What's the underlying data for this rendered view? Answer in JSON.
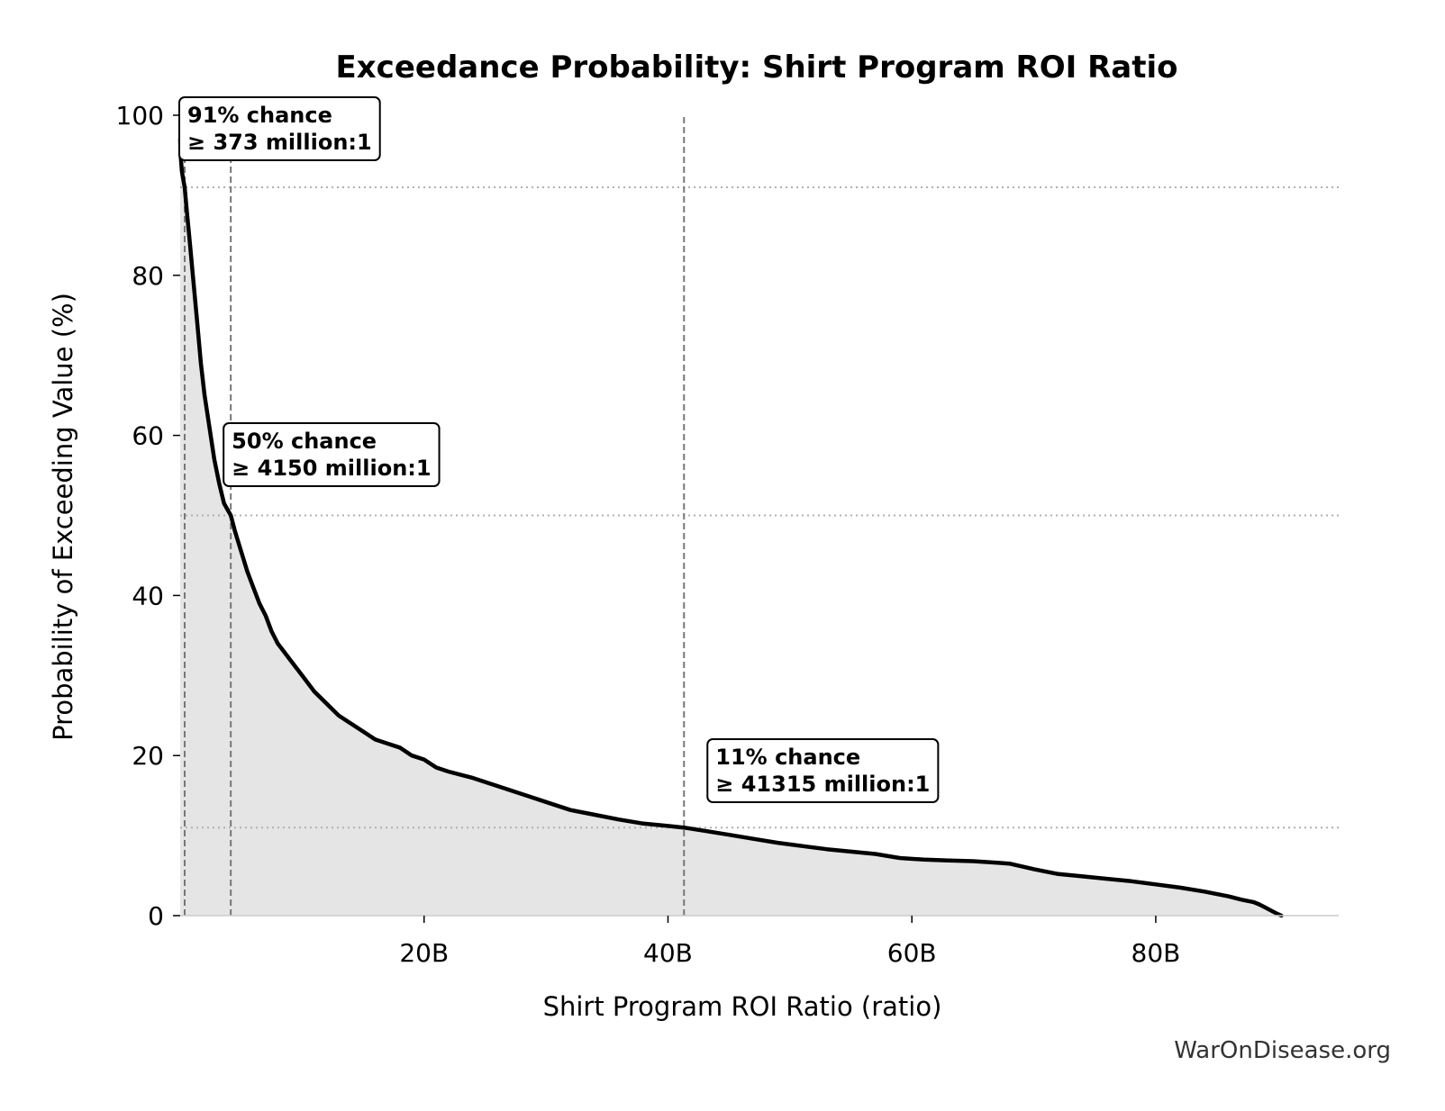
{
  "chart_data": {
    "type": "line",
    "title": "Exceedance Probability: Shirt Program ROI Ratio",
    "xlabel": "Shirt Program ROI Ratio (ratio)",
    "ylabel": "Probability of Exceeding Value (%)",
    "xlim": [
      0,
      95
    ],
    "ylim": [
      0,
      100
    ],
    "x_unit": "billion",
    "x_ticks": [
      {
        "value": 20,
        "label": "20B"
      },
      {
        "value": 40,
        "label": "40B"
      },
      {
        "value": 60,
        "label": "60B"
      },
      {
        "value": 80,
        "label": "80B"
      }
    ],
    "y_ticks": [
      {
        "value": 0,
        "label": "0"
      },
      {
        "value": 20,
        "label": "20"
      },
      {
        "value": 40,
        "label": "40"
      },
      {
        "value": 60,
        "label": "60"
      },
      {
        "value": 80,
        "label": "80"
      },
      {
        "value": 100,
        "label": "100"
      }
    ],
    "grid": false,
    "fill_under_curve": true,
    "colors": {
      "line": "#000000",
      "fill": "#e5e5e5",
      "marker_line": "#777777",
      "ref_line": "#b0b0b0",
      "axis": "#cccccc"
    },
    "series": [
      {
        "x": [
          0.0,
          0.04,
          0.14,
          0.25,
          0.37,
          0.55,
          0.8,
          1.1,
          1.4,
          1.7,
          2.0,
          2.4,
          2.8,
          3.2,
          3.6,
          4.15,
          4.5,
          5.0,
          5.5,
          6.0,
          6.5,
          7.0,
          7.5,
          8.0,
          8.5,
          9.0,
          9.5,
          10.0,
          11.0,
          12.0,
          13.0,
          14.0,
          15.0,
          16.0,
          17.0,
          18.0,
          19.0,
          20.0,
          21.0,
          22.0,
          24.0,
          26.0,
          28.0,
          30.0,
          32.0,
          34.0,
          36.0,
          38.0,
          40.0,
          41.3,
          43.0,
          45.0,
          47.0,
          49.0,
          51.0,
          53.0,
          55.0,
          57.0,
          59.0,
          61.0,
          63.0,
          65.0,
          67.0,
          68.0,
          70.0,
          72.0,
          74.0,
          76.0,
          78.0,
          80.0,
          82.0,
          84.0,
          86.0,
          87.0,
          88.0,
          88.5,
          89.0,
          89.5,
          90.0,
          90.3
        ],
        "y": [
          97.0,
          95.0,
          93.0,
          92.0,
          91.0,
          88.0,
          84.0,
          79.0,
          74.0,
          69.0,
          65.0,
          61.0,
          57.0,
          54.0,
          51.5,
          50.0,
          48.0,
          45.5,
          43.0,
          41.0,
          39.0,
          37.5,
          35.5,
          34.0,
          33.0,
          32.0,
          31.0,
          30.0,
          28.0,
          26.5,
          25.0,
          24.0,
          23.0,
          22.0,
          21.5,
          21.0,
          20.0,
          19.5,
          18.5,
          18.0,
          17.2,
          16.2,
          15.2,
          14.2,
          13.2,
          12.6,
          12.0,
          11.5,
          11.2,
          11.0,
          10.6,
          10.1,
          9.6,
          9.1,
          8.7,
          8.3,
          8.0,
          7.7,
          7.2,
          7.0,
          6.9,
          6.8,
          6.6,
          6.5,
          5.8,
          5.2,
          4.9,
          4.6,
          4.3,
          3.9,
          3.5,
          3.0,
          2.4,
          2.0,
          1.7,
          1.4,
          1.0,
          0.6,
          0.2,
          0.0
        ]
      }
    ],
    "markers": [
      {
        "x": 0.37,
        "probability": 91,
        "line1": "91% chance",
        "line2": "≥ 373 million:1"
      },
      {
        "x": 4.15,
        "probability": 50,
        "line1": "50% chance",
        "line2": "≥ 4150 million:1"
      },
      {
        "x": 41.315,
        "probability": 11,
        "line1": "11% chance",
        "line2": "≥ 41315 million:1"
      }
    ]
  },
  "footer": {
    "watermark": "WarOnDisease.org"
  }
}
